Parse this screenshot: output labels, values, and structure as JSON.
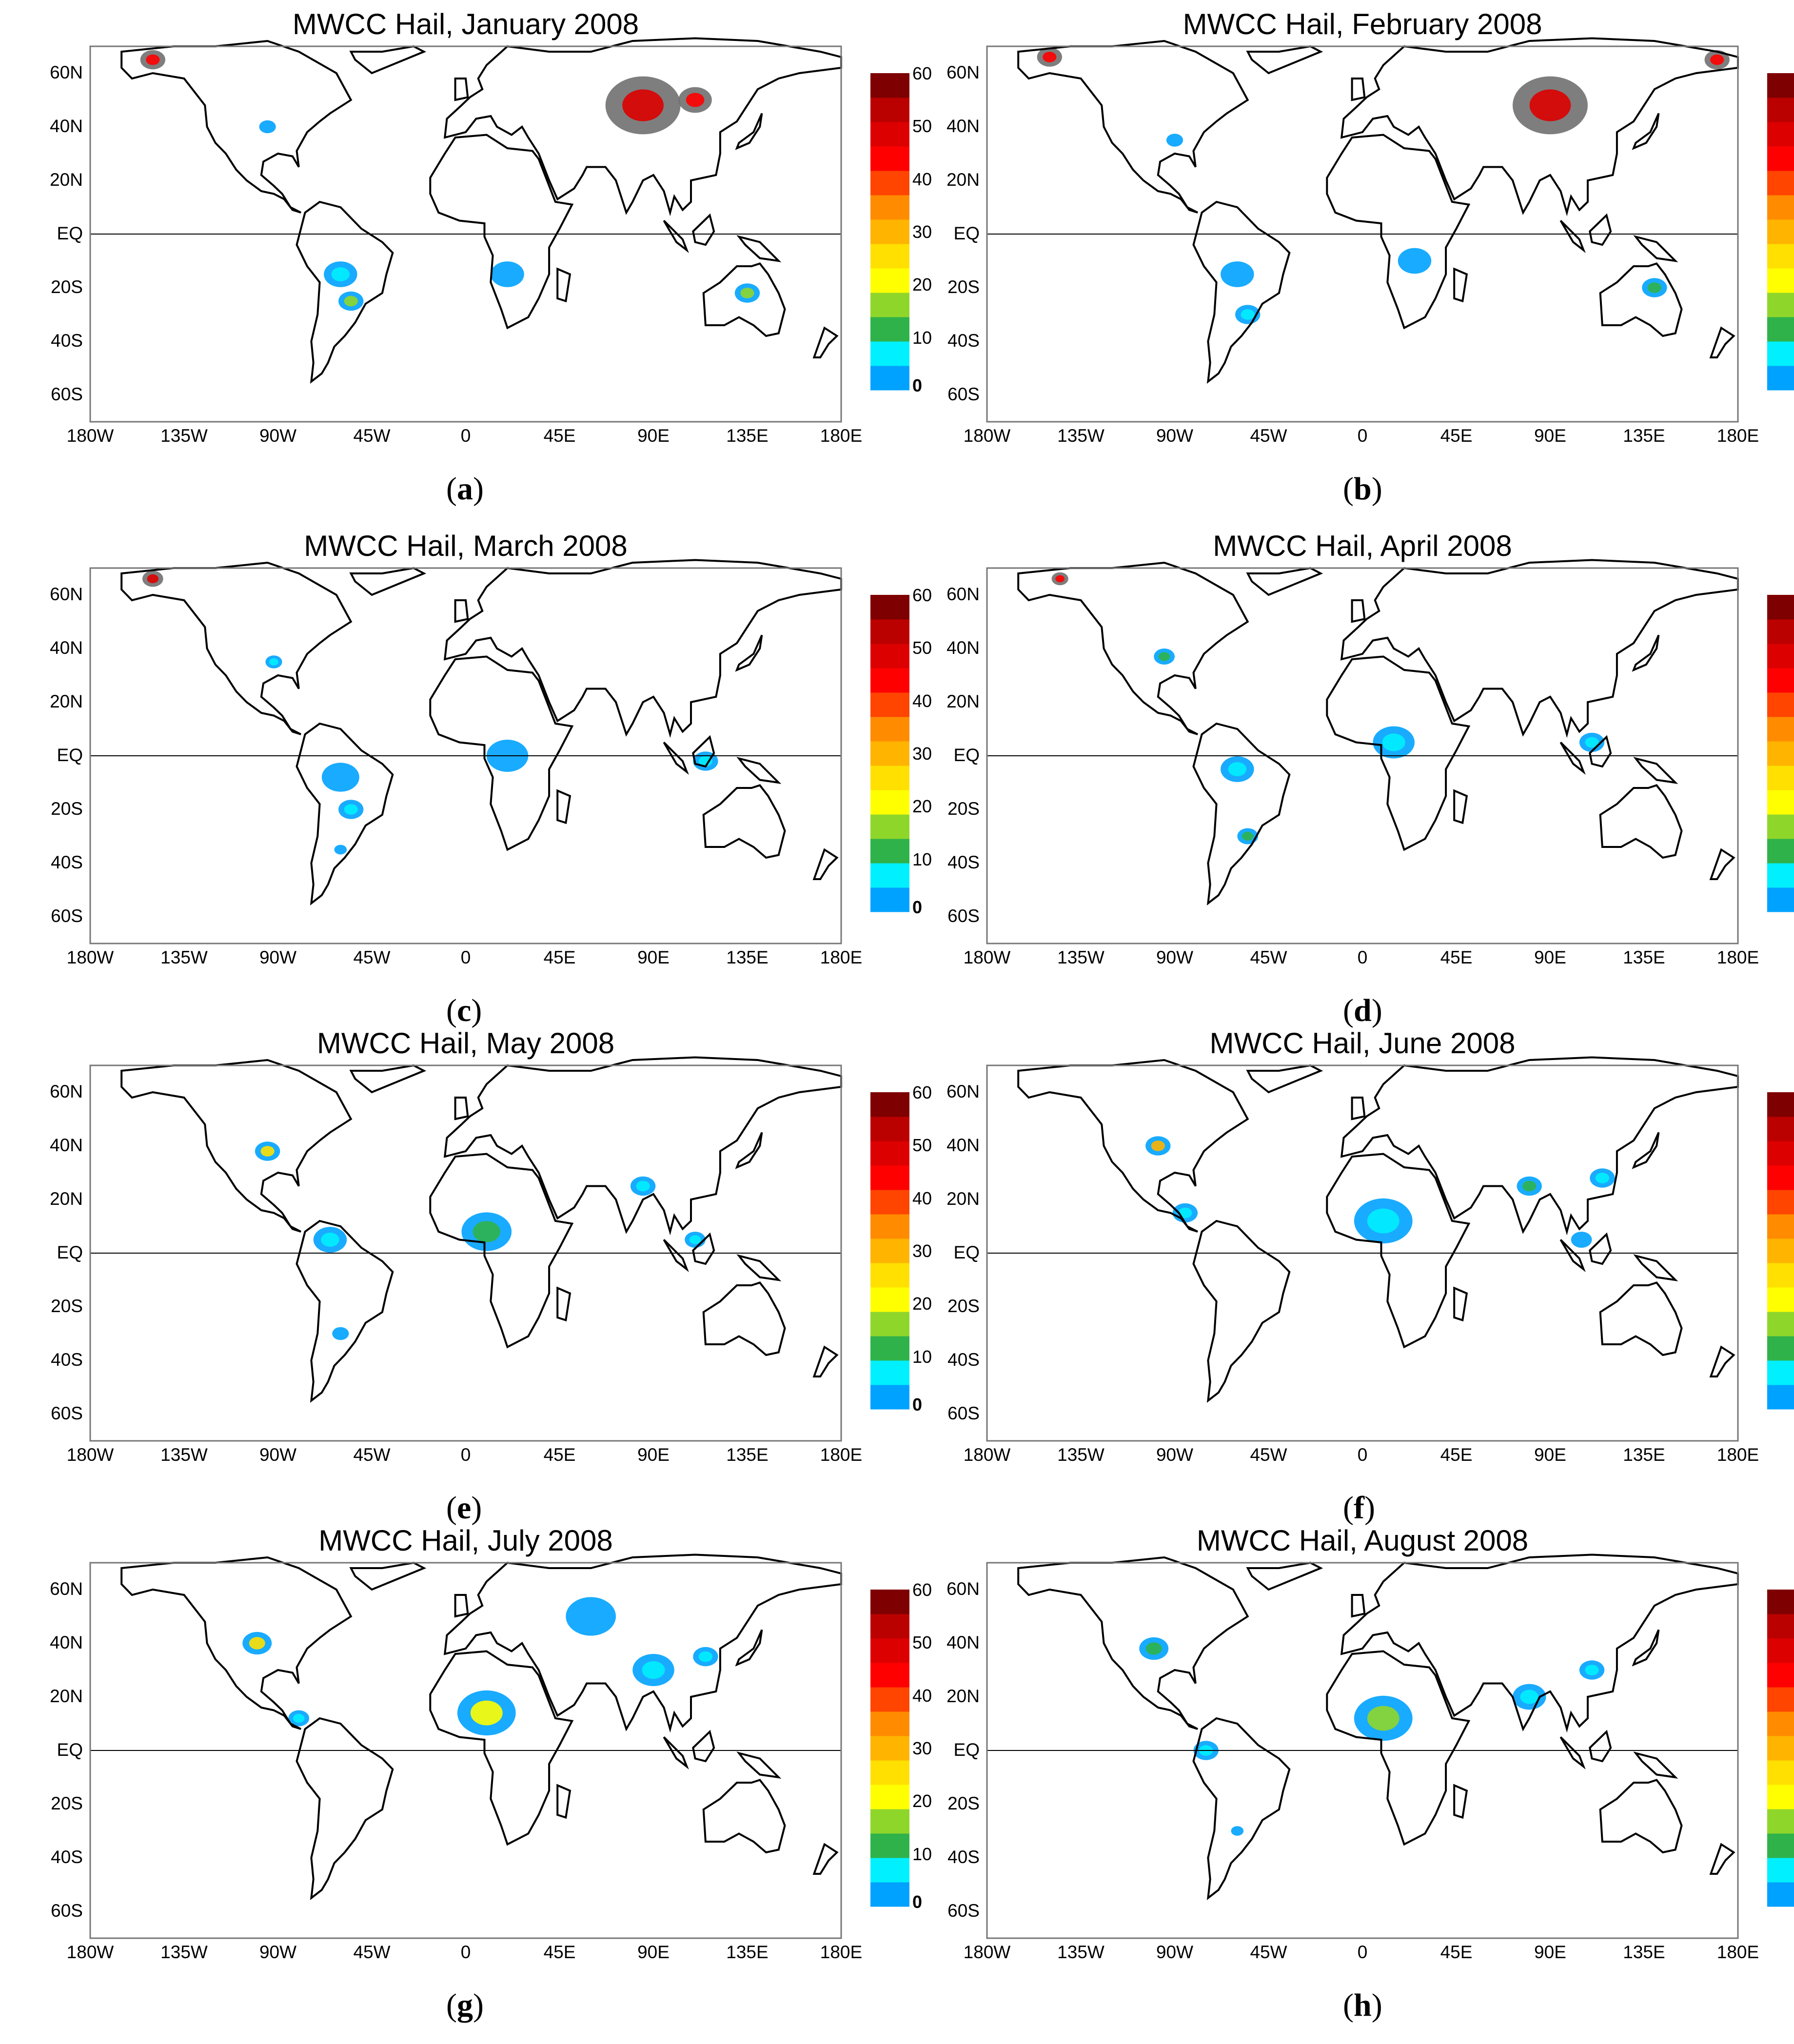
{
  "figure": {
    "panels": [
      {
        "id": "a",
        "title": "MWCC Hail, January 2008",
        "label": "a"
      },
      {
        "id": "b",
        "title": "MWCC Hail, February 2008",
        "label": "b"
      },
      {
        "id": "c",
        "title": "MWCC Hail, March 2008",
        "label": "c"
      },
      {
        "id": "d",
        "title": "MWCC Hail, April 2008",
        "label": "d"
      },
      {
        "id": "e",
        "title": "MWCC Hail, May 2008",
        "label": "e"
      },
      {
        "id": "f",
        "title": "MWCC Hail, June 2008",
        "label": "f"
      },
      {
        "id": "g",
        "title": "MWCC Hail, July 2008",
        "label": "g"
      },
      {
        "id": "h",
        "title": "MWCC Hail, August 2008",
        "label": "h"
      }
    ],
    "lat_ticks": [
      "60N",
      "40N",
      "20N",
      "EQ",
      "20S",
      "40S",
      "60S"
    ],
    "lon_ticks": [
      "180W",
      "135W",
      "90W",
      "45W",
      "0",
      "45E",
      "90E",
      "135E",
      "180E"
    ],
    "colorbar": {
      "tick_labels": [
        "60",
        "50",
        "40",
        "30",
        "20",
        "10",
        "0"
      ],
      "colors": [
        "#00a2ff",
        "#00f0ff",
        "#2fb24a",
        "#8fd62b",
        "#ffff00",
        "#ffe000",
        "#ffb400",
        "#ff8c00",
        "#ff4500",
        "#ff0000",
        "#dd0000",
        "#bb0000",
        "#7f0000"
      ]
    },
    "colors": {
      "map_line": "#000000",
      "masked_gray": "#707070"
    }
  }
}
